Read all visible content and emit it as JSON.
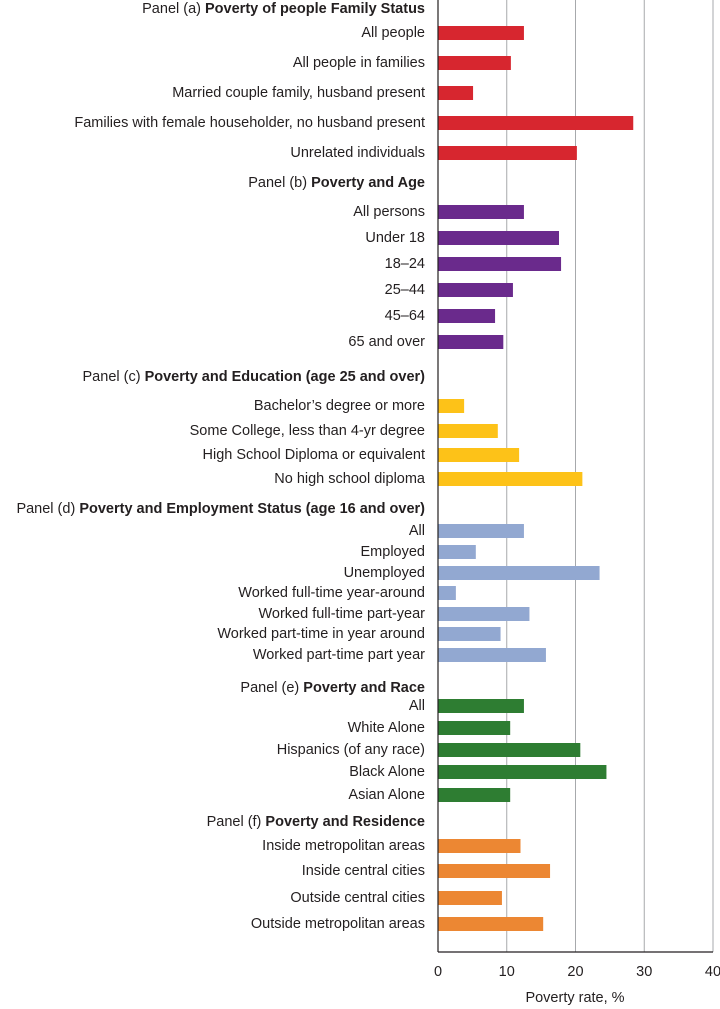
{
  "chart_data": {
    "type": "bar",
    "orientation": "horizontal",
    "xlabel": "Poverty rate, %",
    "xlim": [
      0,
      40
    ],
    "xticks": [
      "0",
      "10",
      "20",
      "30",
      "40"
    ],
    "grid": true,
    "panels": [
      {
        "prefix": "Panel (a)",
        "title": "Poverty of people Family Status",
        "color": "#d7262f",
        "categories": [
          "All people",
          "All people in families",
          "Married couple family, husband present",
          "Families with female householder, no husband present",
          "Unrelated individuals"
        ],
        "values": [
          12.5,
          10.6,
          5.1,
          28.4,
          20.2
        ]
      },
      {
        "prefix": "Panel (b)",
        "title": "Poverty and Age",
        "color": "#6a2a8c",
        "categories": [
          "All persons",
          "Under 18",
          "18–24",
          "25–44",
          "45–64",
          "65 and over"
        ],
        "values": [
          12.5,
          17.6,
          17.9,
          10.9,
          8.3,
          9.5
        ]
      },
      {
        "prefix": "Panel (c)",
        "title": "Poverty and Education (age 25 and over)",
        "color": "#fdc218",
        "categories": [
          "Bachelor’s degree or more",
          "Some College, less than 4-yr degree",
          "High School Diploma or equivalent",
          "No high school diploma"
        ],
        "values": [
          3.8,
          8.7,
          11.8,
          21.0
        ]
      },
      {
        "prefix": "Panel (d)",
        "title": "Poverty and Employment Status (age 16 and over)",
        "color": "#92a8d1",
        "categories": [
          "All",
          "Employed",
          "Unemployed",
          "Worked full-time year-around",
          "Worked full-time part-year",
          "Worked part-time in year around",
          "Worked part-time part year"
        ],
        "values": [
          12.5,
          5.5,
          23.5,
          2.6,
          13.3,
          9.1,
          15.7
        ]
      },
      {
        "prefix": "Panel (e)",
        "title": "Poverty and Race",
        "color": "#2e7d32",
        "categories": [
          "All",
          "White Alone",
          "Hispanics (of any race)",
          "Black Alone",
          "Asian Alone"
        ],
        "values": [
          12.5,
          10.5,
          20.7,
          24.5,
          10.5
        ]
      },
      {
        "prefix": "Panel (f)",
        "title": "Poverty and Residence",
        "color": "#ec8733",
        "categories": [
          "Inside metropolitan areas",
          "Inside central cities",
          "Outside central cities",
          "Outside metropolitan areas"
        ],
        "values": [
          12.0,
          16.3,
          9.3,
          15.3
        ]
      }
    ]
  }
}
